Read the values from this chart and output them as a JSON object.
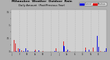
{
  "title": "Milwaukee  Weather  Outdoor  Rain",
  "subtitle": "Daily Amount  (Past/Previous Year)",
  "background_color": "#b0b0b0",
  "plot_background": "#d0d0d0",
  "legend_current_label": "Current",
  "legend_previous_label": "Previous",
  "color_current": "#0000dd",
  "color_previous": "#dd0000",
  "n_days": 365,
  "ylim": [
    0,
    1.6
  ],
  "grid_color": "#999999",
  "month_starts": [
    0,
    31,
    59,
    90,
    120,
    151,
    181,
    212,
    243,
    273,
    304,
    334
  ],
  "month_labels": [
    "J",
    "F",
    "M",
    "A",
    "M",
    "J",
    "J",
    "A",
    "S",
    "O",
    "N",
    "D"
  ]
}
